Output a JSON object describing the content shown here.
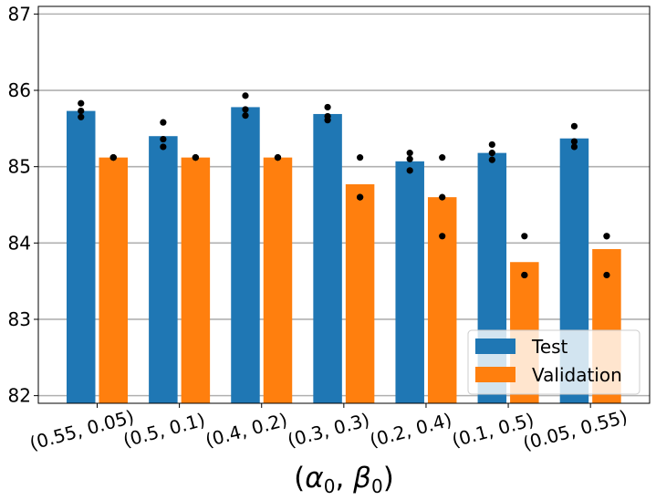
{
  "chart_data": {
    "type": "bar",
    "title": "",
    "xlabel": "(α0, β0)",
    "xlabel_parts": {
      "open": "(",
      "a": "α",
      "sub_a": "0",
      "sep": ", ",
      "b": "β",
      "sub_b": "0",
      "close": ")"
    },
    "ylabel": "",
    "ylim": [
      81.9,
      87.1
    ],
    "yticks": [
      "82",
      "83",
      "84",
      "85",
      "86",
      "87"
    ],
    "ytick_values": [
      82,
      83,
      84,
      85,
      86,
      87
    ],
    "grid": "horizontal",
    "categories": [
      "(0.55, 0.05)",
      "(0.5, 0.1)",
      "(0.4, 0.2)",
      "(0.3, 0.3)",
      "(0.2, 0.4)",
      "(0.1, 0.5)",
      "(0.05, 0.55)"
    ],
    "series": [
      {
        "name": "Test",
        "color": "#1f77b4",
        "values": [
          85.73,
          85.4,
          85.78,
          85.69,
          85.07,
          85.18,
          85.37
        ],
        "points": [
          [
            85.83,
            85.73,
            85.65
          ],
          [
            85.58,
            85.36,
            85.26
          ],
          [
            85.93,
            85.75,
            85.67
          ],
          [
            85.78,
            85.66,
            85.61
          ],
          [
            85.18,
            85.1,
            84.95
          ],
          [
            85.29,
            85.18,
            85.09
          ],
          [
            85.53,
            85.33,
            85.26
          ]
        ]
      },
      {
        "name": "Validation",
        "color": "#ff7f0e",
        "values": [
          85.12,
          85.12,
          85.12,
          84.77,
          84.6,
          83.75,
          83.92
        ],
        "points": [
          [
            85.12,
            85.12,
            85.12
          ],
          [
            85.12,
            85.12,
            85.12
          ],
          [
            85.12,
            85.12,
            85.12
          ],
          [
            85.12,
            84.6,
            84.6
          ],
          [
            85.12,
            84.6,
            84.09
          ],
          [
            84.09,
            83.58,
            83.58
          ],
          [
            84.09,
            84.09,
            83.58
          ]
        ]
      }
    ],
    "legend": {
      "position": "lower-right",
      "entries": [
        "Test",
        "Validation"
      ]
    }
  }
}
